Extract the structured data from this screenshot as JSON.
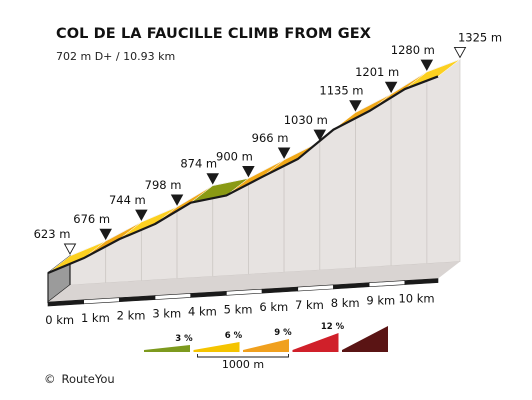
{
  "chart_data": {
    "type": "area",
    "title": "COL DE LA FAUCILLE CLIMB FROM GEX",
    "subtitle": "702 m D+ / 10.93 km",
    "x_unit": "km",
    "x": [
      0,
      1,
      2,
      3,
      4,
      5,
      6,
      7,
      8,
      9,
      10,
      10.93
    ],
    "x_tick_labels": [
      "0 km",
      "1 km",
      "2 km",
      "3 km",
      "4 km",
      "5 km",
      "6 km",
      "7 km",
      "8 km",
      "9 km",
      "10 km"
    ],
    "elevation_m": [
      623,
      676,
      744,
      798,
      874,
      900,
      966,
      1030,
      1135,
      1201,
      1280,
      1325
    ],
    "elevation_labels": [
      "623 m",
      "676 m",
      "744 m",
      "798 m",
      "874 m",
      "900 m",
      "966 m",
      "1030 m",
      "1135 m",
      "1201 m",
      "1280 m",
      "1325 m"
    ],
    "segment_gradient_class": [
      "6-9",
      "6-9",
      "6-9",
      "6-9",
      "3-6",
      "6-9",
      "6-9",
      "9-12",
      "6-9",
      "6-9",
      "6-9"
    ],
    "gradient_legend": [
      {
        "label": "3 %",
        "color": "#7d9a1e"
      },
      {
        "label": "6 %",
        "color": "#f5c400"
      },
      {
        "label": "9 %",
        "color": "#f0a01e"
      },
      {
        "label": "12 %",
        "color": "#d0202a"
      },
      {
        "label": "",
        "color": "#5a1414"
      }
    ],
    "legend_scale_label": "1000 m"
  },
  "footer": {
    "copyright_symbol": "©",
    "credit": "RouteYou"
  }
}
